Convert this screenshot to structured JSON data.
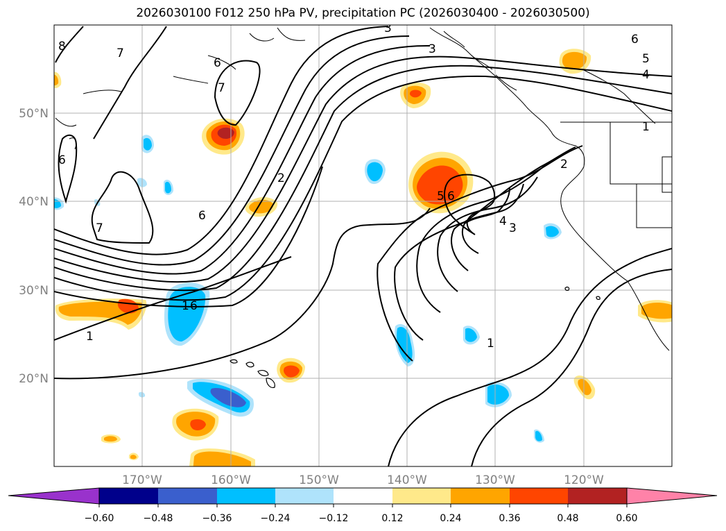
{
  "title": "2026030100 F012 250 hPa PV, precipitation PC (2026030400 - 2026030500)",
  "colors": {
    "contour": "#000000",
    "grid": "#b0b0b0",
    "axis_text": "#808080",
    "pos": [
      "#ffe98a",
      "#ffa500",
      "#ff4500",
      "#b22222",
      "#ff82a8"
    ],
    "neg": [
      "#9932cc",
      "#00008b",
      "#3a5fcd",
      "#00bfff",
      "#afe3fb"
    ]
  },
  "axes": {
    "lat_labels": [
      "50°N",
      "40°N",
      "30°N",
      "20°N"
    ],
    "lon_labels": [
      "170°W",
      "160°W",
      "150°W",
      "140°W",
      "130°W",
      "120°W"
    ]
  },
  "contour_labels": [
    "8",
    "7",
    "6",
    "7",
    "6",
    "6",
    "7",
    "2",
    "6",
    "1",
    "1",
    "3",
    "3",
    "6",
    "5",
    "4",
    "1",
    "2",
    "5",
    "6",
    "4",
    "3",
    "1"
  ],
  "colorbar": {
    "ticks": [
      "−0.60",
      "−0.48",
      "−0.36",
      "−0.24",
      "−0.12",
      "0.12",
      "0.24",
      "0.36",
      "0.48",
      "0.60"
    ]
  }
}
